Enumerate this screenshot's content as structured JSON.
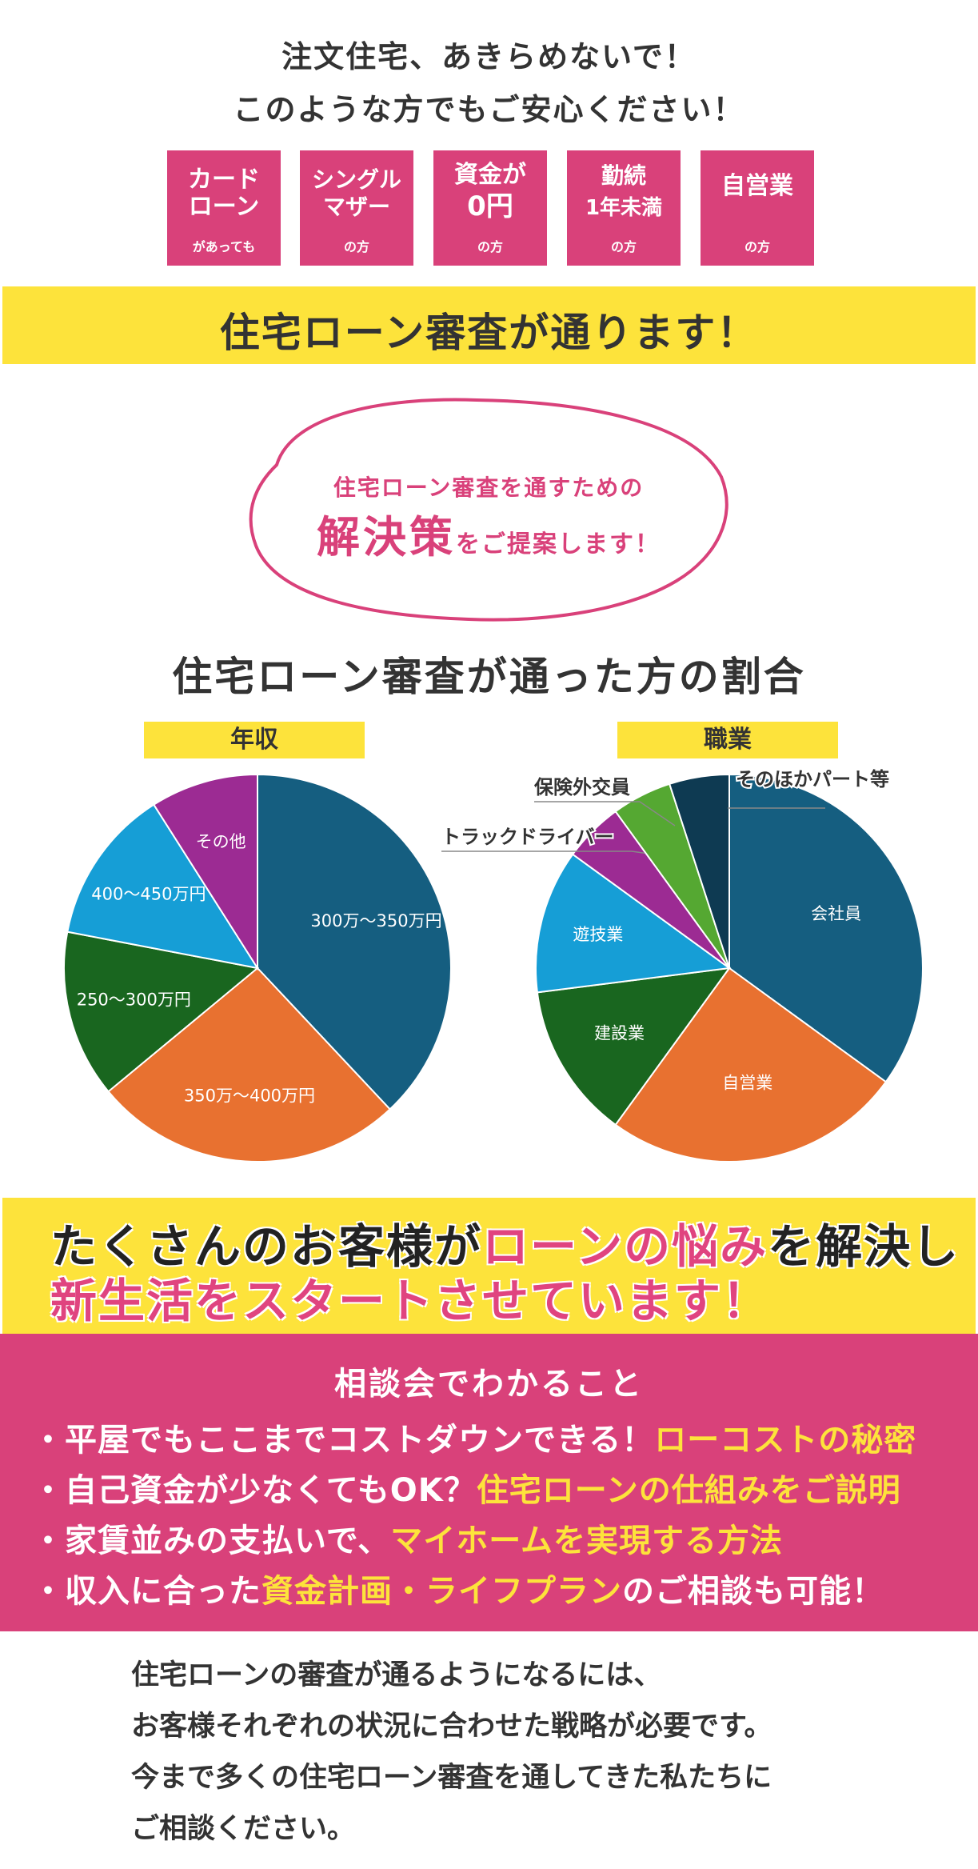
{
  "hero": {
    "line1": "注文住宅、あきらめないで！",
    "line2": "このような方でもご安心ください！"
  },
  "badges": [
    {
      "main1": "カード",
      "main2": "ローン",
      "sub": "があっても"
    },
    {
      "main1": "シングル",
      "main2": "マザー",
      "sub": "の方"
    },
    {
      "main1": "資金が",
      "main2": "0円",
      "sub": "の方"
    },
    {
      "main1": "勤続",
      "main2": "1年未満",
      "sub": "の方"
    },
    {
      "main1": "自営業",
      "main2": "",
      "sub": "の方"
    }
  ],
  "banner": "住宅ローン審査が通ります！",
  "blob": {
    "line1": "住宅ローン審査を通すための",
    "line2_large": "解決策",
    "line2_small": "をご提案します！"
  },
  "section_title": "住宅ローン審査が通った方の割合",
  "colors": {
    "pink": "#d9417a",
    "yellow": "#fde33b",
    "navy": "#155e80",
    "orange": "#e87130",
    "green": "#19661f",
    "cyan": "#169ed6",
    "purple": "#9c2b93",
    "lime": "#55a832",
    "darknavy": "#0e3a52"
  },
  "chart_data": [
    {
      "type": "pie",
      "title": "年収",
      "series": [
        {
          "label": "300万～350万円",
          "value": 38,
          "color": "#155e80"
        },
        {
          "label": "350万～400万円",
          "value": 26,
          "color": "#e87130"
        },
        {
          "label": "250～300万円",
          "value": 14,
          "color": "#19661f"
        },
        {
          "label": "400～450万円",
          "value": 13,
          "color": "#169ed6"
        },
        {
          "label": "その他",
          "value": 9,
          "color": "#9c2b93"
        }
      ]
    },
    {
      "type": "pie",
      "title": "職業",
      "series": [
        {
          "label": "会社員",
          "value": 35,
          "color": "#155e80"
        },
        {
          "label": "自営業",
          "value": 25,
          "color": "#e87130"
        },
        {
          "label": "建設業",
          "value": 13,
          "color": "#19661f"
        },
        {
          "label": "遊技業",
          "value": 12,
          "color": "#169ed6"
        },
        {
          "label": "トラックドライバー",
          "value": 5,
          "color": "#9c2b93"
        },
        {
          "label": "保険外交員",
          "value": 5,
          "color": "#55a832"
        },
        {
          "label": "そのほかパート等",
          "value": 5,
          "color": "#0e3a52"
        }
      ]
    }
  ],
  "band2": {
    "l1_a": "たくさんのお客様が",
    "l1_b": "ローンの悩み",
    "l1_c": "を解決し",
    "l2": "新生活をスタートさせています！"
  },
  "consult": {
    "head": "相談会でわかること",
    "items": [
      {
        "a": "・平屋でもここまでコストダウンできる！",
        "b": "ローコストの秘密",
        "c": ""
      },
      {
        "a": "・自己資金が少なくてもOK？",
        "b": "住宅ローンの仕組みをご説明",
        "c": ""
      },
      {
        "a": "・家賃並みの支払いで、",
        "b": "マイホームを実現する方法",
        "c": ""
      },
      {
        "a": "・収入に合った",
        "b": "資金計画・ライフプラン",
        "c": "のご相談も可能！"
      }
    ]
  },
  "bottom": {
    "l1": "住宅ローンの審査が通るようになるには、",
    "l2": "お客様それぞれの状況に合わせた戦略が必要です。",
    "l3": "今まで多くの住宅ローン審査を通してきた私たちに",
    "l4": "ご相談ください。"
  }
}
